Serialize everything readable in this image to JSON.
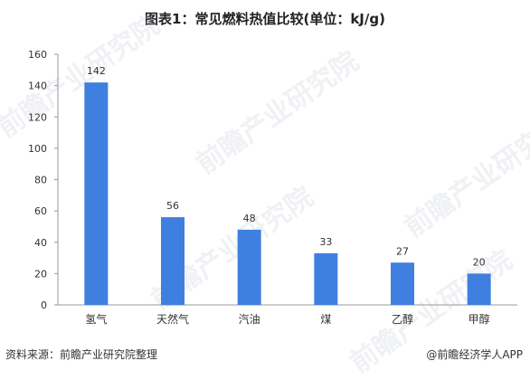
{
  "title": "图表1：常见燃料热值比较(单位：kJ/g)",
  "source": "资料来源：前瞻产业研究院整理",
  "brand": "@前瞻经济学人APP",
  "watermark_text": "前瞻产业研究院",
  "colors": {
    "bar": "#3f7fe0",
    "axis": "#999999"
  },
  "chart_data": {
    "type": "bar",
    "title": "图表1：常见燃料热值比较(单位：kJ/g)",
    "xlabel": "",
    "ylabel": "",
    "categories": [
      "氢气",
      "天然气",
      "汽油",
      "煤",
      "乙醇",
      "甲醇"
    ],
    "values": [
      142,
      56,
      48,
      33,
      27,
      20
    ],
    "ylim": [
      0,
      160
    ],
    "yticks": [
      0,
      20,
      40,
      60,
      80,
      100,
      120,
      140,
      160
    ],
    "grid": false,
    "legend": "none"
  }
}
